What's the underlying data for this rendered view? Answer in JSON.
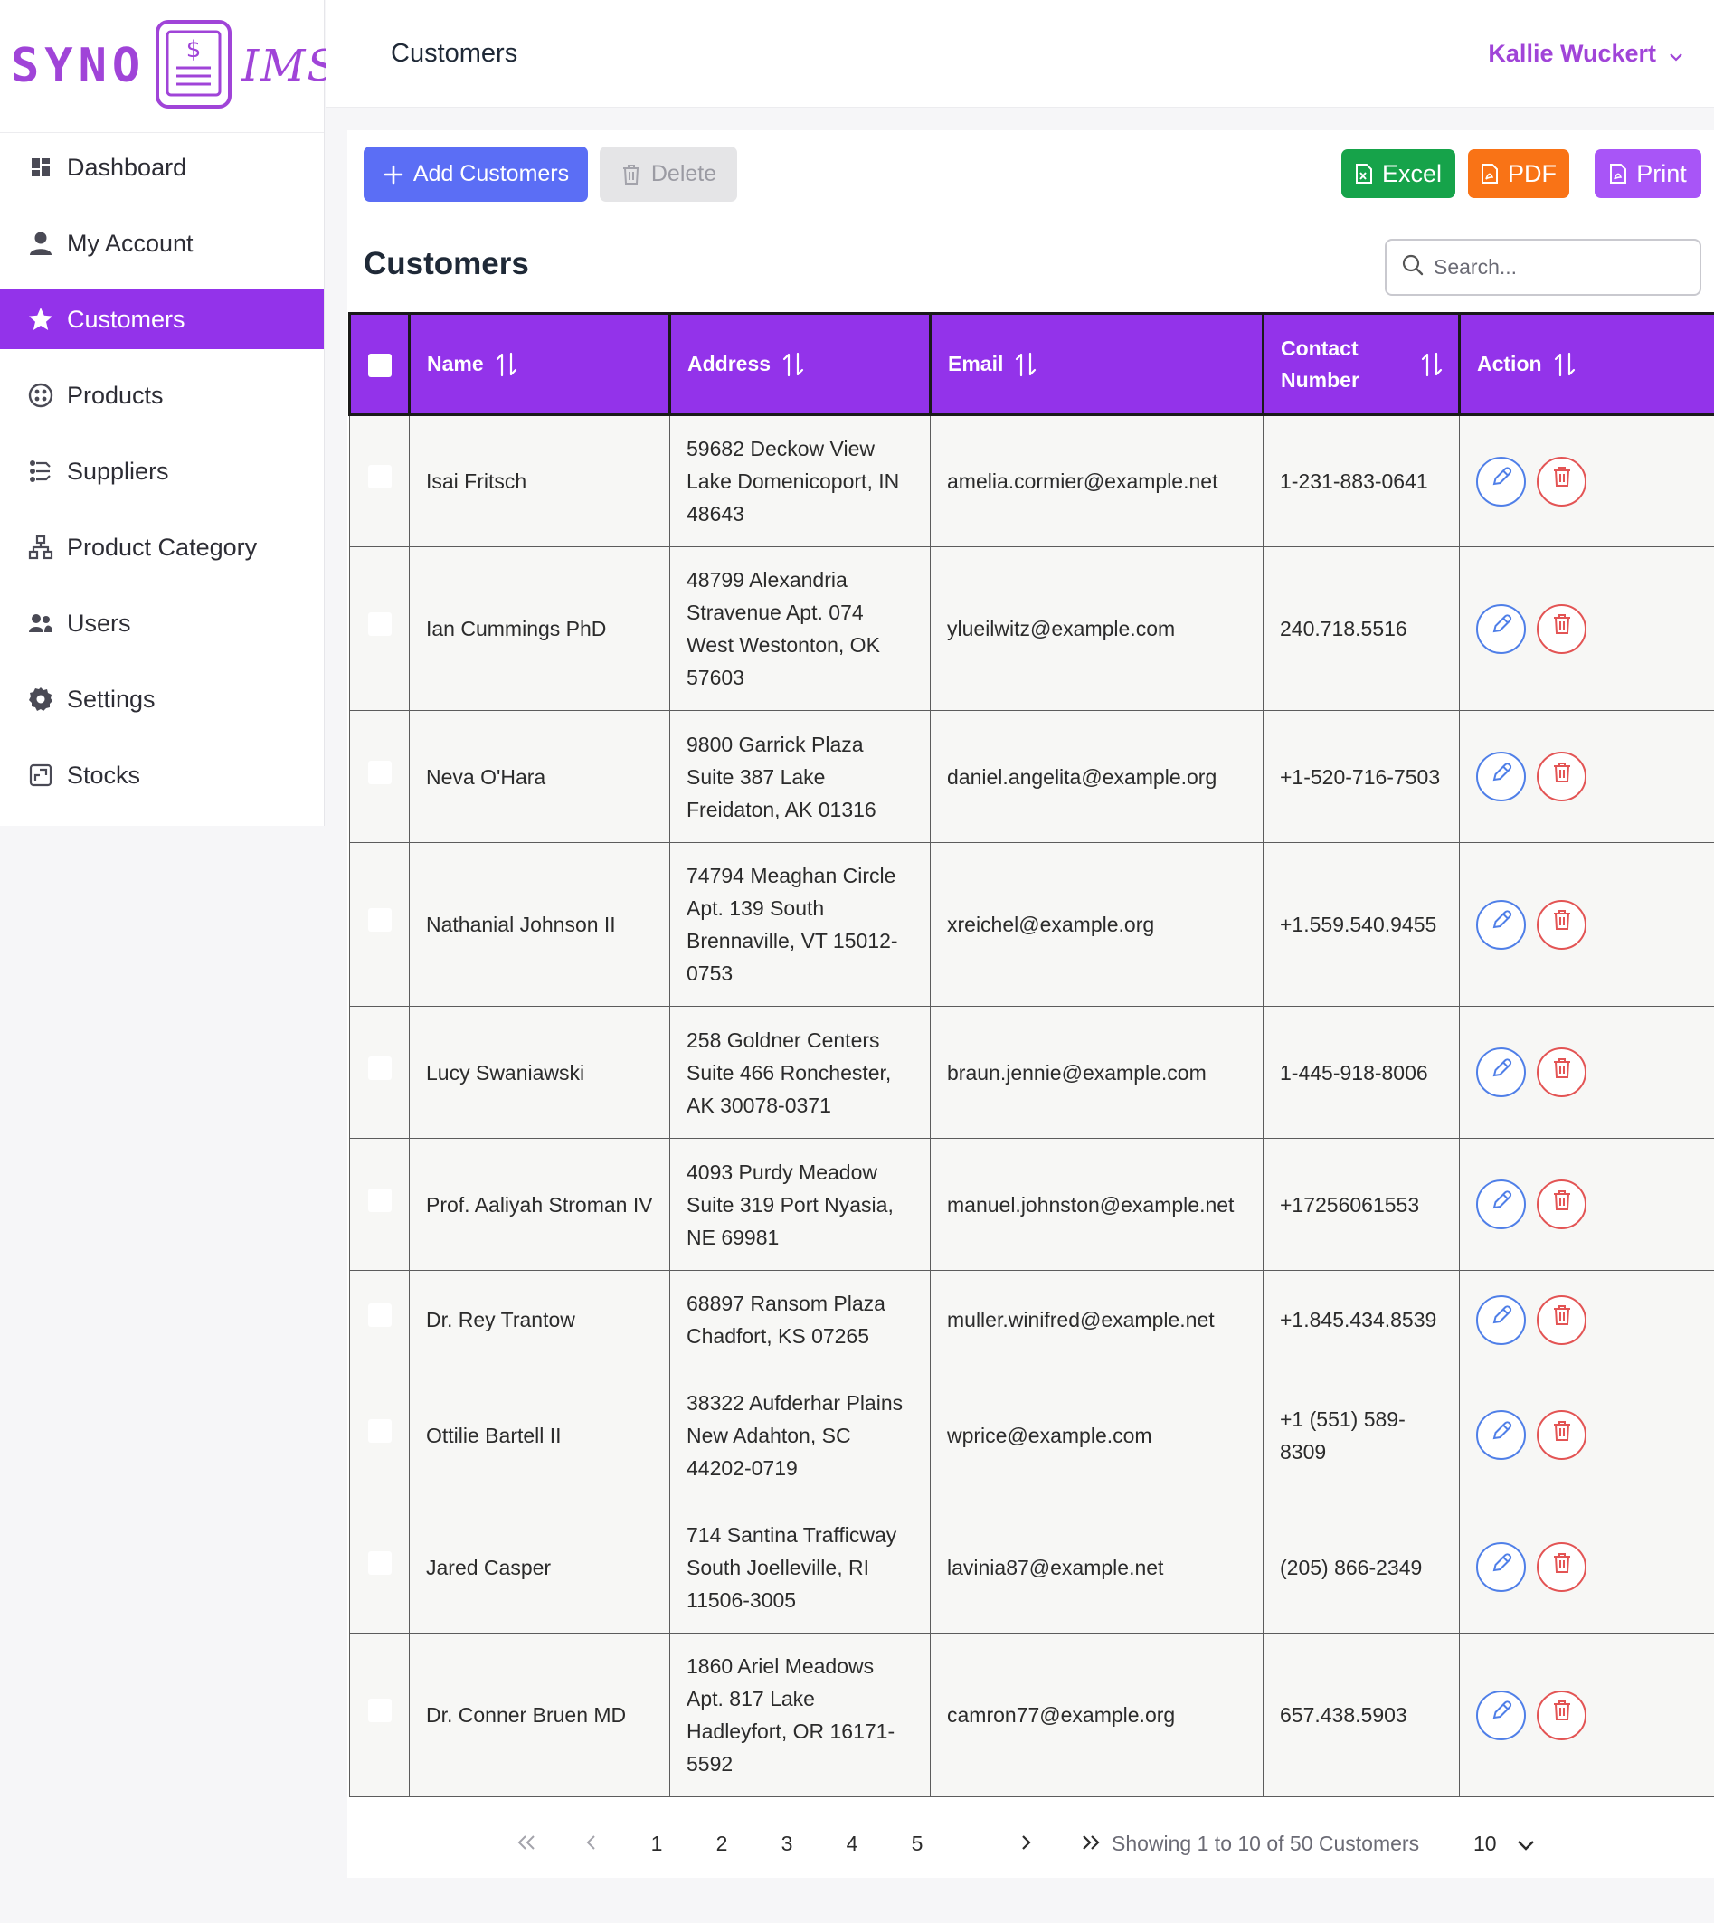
{
  "app": {
    "logo_left": "SYNO",
    "logo_right": "IMS",
    "brand_color": "#9333ea"
  },
  "sidebar": {
    "items": [
      {
        "label": "Dashboard",
        "icon": "dashboard-icon"
      },
      {
        "label": "My Account",
        "icon": "user-icon"
      },
      {
        "label": "Customers",
        "icon": "star-icon",
        "active": true
      },
      {
        "label": "Products",
        "icon": "products-icon"
      },
      {
        "label": "Suppliers",
        "icon": "suppliers-icon"
      },
      {
        "label": "Product Category",
        "icon": "hierarchy-icon"
      },
      {
        "label": "Users",
        "icon": "users-icon"
      },
      {
        "label": "Settings",
        "icon": "gear-icon"
      },
      {
        "label": "Stocks",
        "icon": "stocks-icon"
      }
    ]
  },
  "header": {
    "title": "Customers",
    "user_name": "Kallie Wuckert"
  },
  "toolbar": {
    "add_label": "Add Customers",
    "delete_label": "Delete",
    "excel_label": "Excel",
    "pdf_label": "PDF",
    "print_label": "Print"
  },
  "main": {
    "section_title": "Customers",
    "search_placeholder": "Search..."
  },
  "table": {
    "columns": [
      "Name",
      "Address",
      "Email",
      "Contact Number",
      "Action"
    ],
    "rows": [
      {
        "name": "Isai Fritsch",
        "address": "59682 Deckow View Lake Domenicoport, IN 48643",
        "email": "amelia.cormier@example.net",
        "contact": "1-231-883-0641"
      },
      {
        "name": "Ian Cummings PhD",
        "address": "48799 Alexandria Stravenue Apt. 074 West Westonton, OK 57603",
        "email": "ylueilwitz@example.com",
        "contact": "240.718.5516"
      },
      {
        "name": "Neva O'Hara",
        "address": "9800 Garrick Plaza Suite 387 Lake Freidaton, AK 01316",
        "email": "daniel.angelita@example.org",
        "contact": "+1-520-716-7503"
      },
      {
        "name": "Nathanial Johnson II",
        "address": "74794 Meaghan Circle Apt. 139 South Brennaville, VT 15012-0753",
        "email": "xreichel@example.org",
        "contact": "+1.559.540.9455"
      },
      {
        "name": "Lucy Swaniawski",
        "address": "258 Goldner Centers Suite 466 Ronchester, AK 30078-0371",
        "email": "braun.jennie@example.com",
        "contact": "1-445-918-8006"
      },
      {
        "name": "Prof. Aaliyah Stroman IV",
        "address": "4093 Purdy Meadow Suite 319 Port Nyasia, NE 69981",
        "email": "manuel.johnston@example.net",
        "contact": "+17256061553"
      },
      {
        "name": "Dr. Rey Trantow",
        "address": "68897 Ransom Plaza Chadfort, KS 07265",
        "email": "muller.winifred@example.net",
        "contact": "+1.845.434.8539"
      },
      {
        "name": "Ottilie Bartell II",
        "address": "38322 Aufderhar Plains New Adahton, SC 44202-0719",
        "email": "wprice@example.com",
        "contact": "+1 (551) 589-8309"
      },
      {
        "name": "Jared Casper",
        "address": "714 Santina Trafficway South Joelleville, RI 11506-3005",
        "email": "lavinia87@example.net",
        "contact": "(205) 866-2349"
      },
      {
        "name": "Dr. Conner Bruen MD",
        "address": "1860 Ariel Meadows Apt. 817 Lake Hadleyfort, OR 16171-5592",
        "email": "camron77@example.org",
        "contact": "657.438.5903"
      }
    ]
  },
  "pagination": {
    "pages": [
      "1",
      "2",
      "3",
      "4",
      "5"
    ],
    "showing_text": "Showing 1 to 10 of 50 Customers",
    "per_page": "10"
  }
}
